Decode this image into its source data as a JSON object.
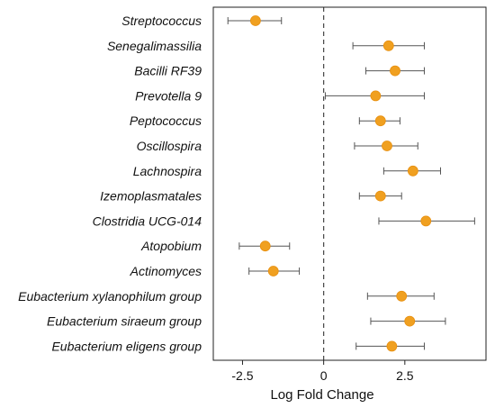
{
  "chart_data": {
    "type": "scatter",
    "subtype": "forest-plot",
    "xlabel": "Log Fold Change",
    "ylabel": "",
    "xlim": [
      -3.4,
      5.0
    ],
    "xticks": [
      -2.5,
      0,
      2.5
    ],
    "xtick_labels": [
      "-2.5",
      "0",
      "2.5"
    ],
    "reference_line": {
      "x": 0,
      "style": "dashed"
    },
    "grid": false,
    "legend": "none",
    "point_color": "#F0A020",
    "errorbar_color": "#555555",
    "categories": [
      "Streptococcus",
      "Senegalimassilia",
      "Bacilli RF39",
      "Prevotella 9",
      "Peptococcus",
      "Oscillospira",
      "Lachnospira",
      "Izemoplasmatales",
      "Clostridia UCG-014",
      "Atopobium",
      "Actinomyces",
      "Eubacterium xylanophilum group",
      "Eubacterium siraeum group",
      "Eubacterium eligens group"
    ],
    "values": [
      -2.1,
      2.0,
      2.2,
      1.6,
      1.75,
      1.95,
      2.75,
      1.75,
      3.15,
      -1.8,
      -1.55,
      2.4,
      2.65,
      2.1
    ],
    "ci_low": [
      -2.95,
      0.9,
      1.3,
      0.05,
      1.1,
      0.95,
      1.85,
      1.1,
      1.7,
      -2.6,
      -2.3,
      1.35,
      1.45,
      1.0
    ],
    "ci_high": [
      -1.3,
      3.1,
      3.1,
      3.1,
      2.35,
      2.9,
      3.6,
      2.4,
      4.65,
      -1.05,
      -0.75,
      3.4,
      3.75,
      3.1
    ]
  }
}
